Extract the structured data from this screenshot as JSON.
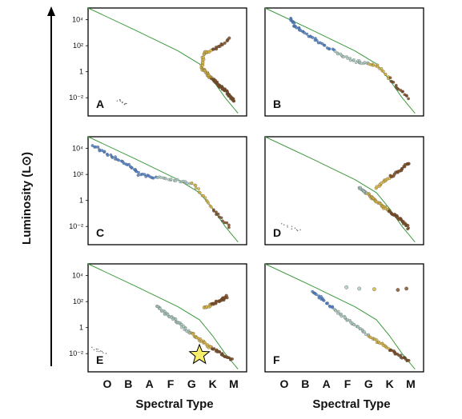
{
  "figure": {
    "ylabel": "Luminosity (L⊙)",
    "xlabel": "Spectral Type",
    "spectral_types": [
      "O",
      "B",
      "A",
      "F",
      "G",
      "K",
      "M"
    ],
    "ytick_labels": [
      "10⁴",
      "10²",
      "1",
      "10⁻²"
    ],
    "colors": {
      "main_sequence_line": "#3e9a3e",
      "hot_stars": "#4a7fc9",
      "middle_stars": "#a9c9bf",
      "cool_stars": "#d8b441",
      "lowest_stars": "#7b4a1e",
      "highlight_star": "#f7ee6b"
    }
  },
  "chart_data": [
    {
      "panel": "A",
      "type": "scatter",
      "show_ytick_labels": true,
      "main_sequence": true,
      "description_series": [
        {
          "name": "",
          "kind": "lower_main_sequence",
          "x": [
            5.1,
            5.5,
            5.9,
            6.3,
            6.6
          ],
          "y": [
            0.3,
            -0.4,
            -1.0,
            -1.6,
            -2.2
          ]
        },
        {
          "name": "",
          "kind": "giant_branch",
          "x": [
            5.1,
            5.15,
            5.2,
            5.3,
            5.5,
            5.8,
            6.1,
            6.4
          ],
          "y": [
            0.4,
            0.9,
            1.3,
            1.5,
            1.6,
            1.8,
            2.1,
            2.5
          ]
        },
        {
          "name": "",
          "kind": "white_dwarfs",
          "x": [
            1.2,
            1.4,
            1.6
          ],
          "y": [
            -2.2,
            -2.35,
            -2.5
          ]
        }
      ]
    },
    {
      "panel": "B",
      "type": "scatter",
      "show_ytick_labels": false,
      "main_sequence": true,
      "description_series": [
        {
          "name": "",
          "kind": "full_main_sequence",
          "x": [
            1.0,
            1.2,
            1.6,
            2.2,
            2.8,
            3.4,
            4.0,
            4.5,
            5.0,
            5.5,
            6.0,
            6.5
          ],
          "y": [
            4.2,
            3.5,
            3.0,
            2.4,
            1.8,
            1.2,
            0.8,
            0.7,
            0.5,
            -0.3,
            -1.2,
            -2.0
          ]
        }
      ]
    },
    {
      "panel": "C",
      "type": "scatter",
      "show_ytick_labels": true,
      "main_sequence": true,
      "description_series": [
        {
          "name": "",
          "kind": "full_main_sequence",
          "x": [
            0.0,
            0.6,
            1.2,
            1.8,
            2.2,
            2.8,
            3.5,
            4.2,
            4.8,
            5.3,
            5.8,
            6.4
          ],
          "y": [
            4.2,
            3.7,
            3.1,
            2.6,
            2.0,
            1.8,
            1.6,
            1.5,
            1.2,
            0.0,
            -1.0,
            -2.0
          ]
        }
      ]
    },
    {
      "panel": "D",
      "type": "scatter",
      "show_ytick_labels": false,
      "main_sequence": true,
      "description_series": [
        {
          "name": "",
          "kind": "lower_main_sequence",
          "x": [
            4.2,
            4.6,
            5.0,
            5.5,
            6.0,
            6.5
          ],
          "y": [
            1.0,
            0.5,
            -0.1,
            -0.7,
            -1.3,
            -2.1
          ]
        },
        {
          "name": "",
          "kind": "giant_branch",
          "x": [
            5.0,
            5.3,
            5.6,
            6.0,
            6.3,
            6.5
          ],
          "y": [
            1.0,
            1.4,
            1.8,
            2.2,
            2.6,
            2.9
          ]
        },
        {
          "name": "",
          "kind": "white_dwarfs",
          "x": [
            0.6,
            0.9,
            1.2,
            1.4
          ],
          "y": [
            -1.7,
            -2.0,
            -2.2,
            -2.3
          ]
        }
      ]
    },
    {
      "panel": "E",
      "type": "scatter",
      "show_ytick_labels": true,
      "main_sequence": true,
      "description_series": [
        {
          "name": "",
          "kind": "lower_main_sequence",
          "x": [
            3.0,
            3.5,
            4.0,
            4.5,
            5.0,
            5.5,
            6.0,
            6.5
          ],
          "y": [
            1.6,
            1.0,
            0.4,
            -0.3,
            -0.9,
            -1.5,
            -2.0,
            -2.5
          ]
        },
        {
          "name": "",
          "kind": "giant_branch",
          "x": [
            5.2,
            5.6,
            6.0,
            6.3
          ],
          "y": [
            1.5,
            1.8,
            2.1,
            2.4
          ]
        },
        {
          "name": "",
          "kind": "white_dwarfs",
          "x": [
            0.0,
            0.3,
            0.6
          ],
          "y": [
            -1.6,
            -1.75,
            -1.9
          ]
        }
      ],
      "highlight": {
        "name": "",
        "x": 5.0,
        "y": -2.1,
        "marker": "star"
      }
    },
    {
      "panel": "F",
      "type": "scatter",
      "show_ytick_labels": false,
      "main_sequence": true,
      "description_series": [
        {
          "name": "",
          "kind": "main_sequence",
          "x": [
            2.0,
            2.6,
            3.2,
            3.8,
            4.4,
            5.0,
            5.5,
            6.0,
            6.5
          ],
          "y": [
            2.8,
            2.0,
            1.2,
            0.4,
            -0.3,
            -1.0,
            -1.6,
            -2.1,
            -2.6
          ]
        },
        {
          "name": "",
          "kind": "scattered_giants",
          "x": [
            3.6,
            4.2,
            4.9,
            6.0,
            6.4
          ],
          "y": [
            3.1,
            3.0,
            2.95,
            2.9,
            3.0
          ]
        }
      ]
    }
  ]
}
